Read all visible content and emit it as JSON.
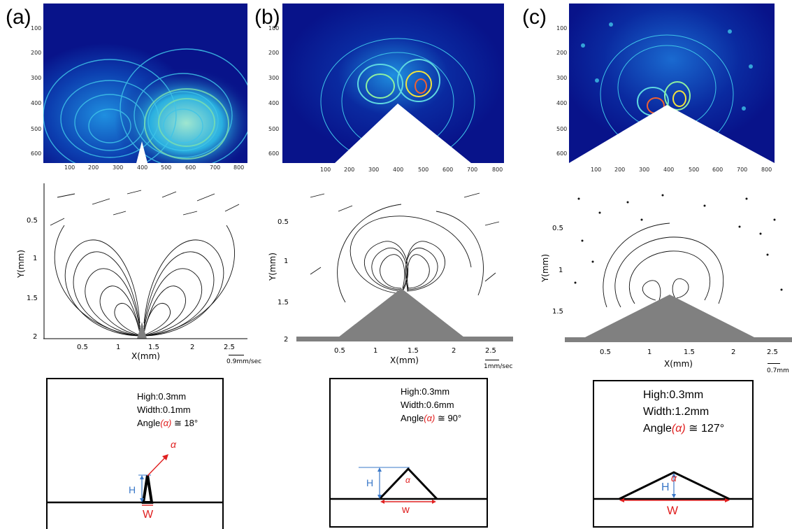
{
  "panels": [
    {
      "label": "(a)",
      "heat_yticks": [
        "100",
        "200",
        "300",
        "400",
        "500",
        "600"
      ],
      "heat_xticks": [
        "100",
        "200",
        "300",
        "400",
        "500",
        "600",
        "700",
        "800"
      ],
      "stream_yticks": [
        "0.5",
        "1",
        "1.5",
        "2"
      ],
      "stream_xticks": [
        "0.5",
        "1",
        "1.5",
        "2",
        "2.5"
      ],
      "xlabel": "X(mm)",
      "ylabel": "Y(mm)",
      "scale": "0.9mm/sec",
      "high": "High:0.3mm",
      "width": "Width:0.1mm",
      "angle_prefix": "Angle",
      "angle_alpha": "(α)",
      "angle_value": " ≅ 18°",
      "h_label": "H",
      "w_label": "W",
      "alpha": "α"
    },
    {
      "label": "(b)",
      "heat_yticks": [
        "100",
        "200",
        "300",
        "400",
        "500",
        "600"
      ],
      "heat_xticks": [
        "100",
        "200",
        "300",
        "400",
        "500",
        "600",
        "700",
        "800"
      ],
      "stream_yticks": [
        "0.5",
        "1",
        "1.5",
        "2"
      ],
      "stream_xticks": [
        "0.5",
        "1",
        "1.5",
        "2",
        "2.5"
      ],
      "xlabel": "X(mm)",
      "ylabel": "Y(mm)",
      "scale": "1mm/sec",
      "high": "High:0.3mm",
      "width": "Width:0.6mm",
      "angle_prefix": "Angle",
      "angle_alpha": "(α)",
      "angle_value": " ≅ 90°",
      "h_label": "H",
      "w_label": "w",
      "alpha": "α"
    },
    {
      "label": "(c)",
      "heat_yticks": [
        "100",
        "200",
        "300",
        "400",
        "500",
        "600"
      ],
      "heat_xticks": [
        "100",
        "200",
        "300",
        "400",
        "500",
        "600",
        "700",
        "800"
      ],
      "stream_yticks": [
        "0.5",
        "1",
        "1.5"
      ],
      "stream_xticks": [
        "0.5",
        "1",
        "1.5",
        "2",
        "2.5"
      ],
      "xlabel": "X(mm)",
      "ylabel": "Y(mm)",
      "scale": "0.7mm",
      "high": "High:0.3mm",
      "width": "Width:1.2mm",
      "angle_prefix": "Angle",
      "angle_alpha": "(α)",
      "angle_value": " ≅ 127°",
      "h_label": "H",
      "w_label": "W",
      "alpha": "α"
    }
  ],
  "colors": {
    "heat_low": "#08138a",
    "heat_mid": "#1f8fe0",
    "heat_high": "#f3e33c",
    "obstacle": "#808080",
    "annotation_blue": "#3a78c8",
    "annotation_red": "#e02020"
  }
}
